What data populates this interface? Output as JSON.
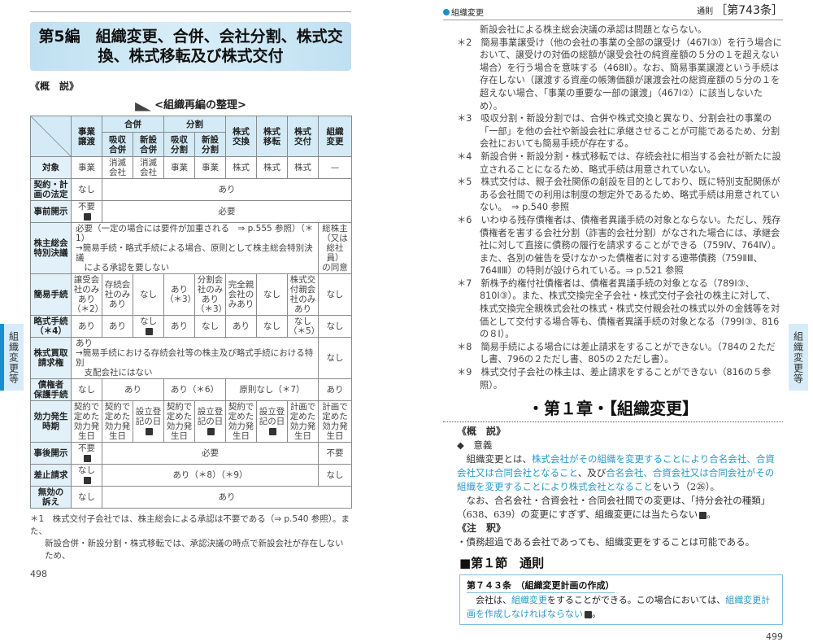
{
  "left_page": {
    "part_title": "第5編　組織変更、合併、会社分割、株式交換、株式移転及び株式交付",
    "overview_heading": "《概　説》",
    "table_title": "<組織再編の整理>",
    "side_tab": "組織変更等",
    "table": {
      "header1": [
        {
          "t": "",
          "rs": 2,
          "diag": true
        },
        {
          "t": "事業\n譲渡",
          "rs": 2
        },
        {
          "t": "合併",
          "cs": 2
        },
        {
          "t": "分割",
          "cs": 2
        },
        {
          "t": "株式\n交換",
          "rs": 2
        },
        {
          "t": "株式\n移転",
          "rs": 2
        },
        {
          "t": "株式\n交付",
          "rs": 2
        },
        {
          "t": "組織\n変更",
          "rs": 2
        }
      ],
      "header2": [
        {
          "t": "吸収\n合併"
        },
        {
          "t": "新設\n合併"
        },
        {
          "t": "吸収\n分割"
        },
        {
          "t": "新設\n分割"
        }
      ],
      "rows": [
        {
          "label": "対象",
          "cells": [
            {
              "t": "事業"
            },
            {
              "t": "消滅\n会社"
            },
            {
              "t": "消滅\n会社"
            },
            {
              "t": "事業"
            },
            {
              "t": "事業"
            },
            {
              "t": "株式"
            },
            {
              "t": "株式"
            },
            {
              "t": "株式"
            },
            {
              "t": "—"
            }
          ]
        },
        {
          "label": "契約・計\n画の法定",
          "cells": [
            {
              "t": "なし"
            },
            {
              "t": "あり",
              "cs": 8
            }
          ]
        },
        {
          "label": "事前開示",
          "cells": [
            {
              "t": "不要\n",
              "b": true
            },
            {
              "t": "必要",
              "cs": 8
            }
          ]
        },
        {
          "label": "株主総会\n特別決議",
          "cells": [
            {
              "t": "必要（一定の場合には要件が加重される　⇒ p.555 参照）（＊1）\n→簡易手続・略式手続による場合、原則として株主総会特別決議\n　による承認を要しない",
              "cs": 8,
              "left": true
            },
            {
              "t": "総株主\n（又は\n総社員）\nの同意"
            }
          ]
        },
        {
          "label": "簡易手続",
          "cells": [
            {
              "t": "譲受会\n社のみ\nあり\n（＊2）"
            },
            {
              "t": "存続会\n社のみ\nあり"
            },
            {
              "t": "なし"
            },
            {
              "t": "あり\n（＊3）"
            },
            {
              "t": "分割会\n社のみ\nあり\n（＊3）"
            },
            {
              "t": "完全親\n会社の\nみあり"
            },
            {
              "t": "なし"
            },
            {
              "t": "株式交\n付親会\n社のみ\nあり"
            },
            {
              "t": "なし"
            }
          ]
        },
        {
          "label": "略式手続\n（＊4）",
          "cells": [
            {
              "t": "あり"
            },
            {
              "t": "あり"
            },
            {
              "t": "なし\n",
              "b": true
            },
            {
              "t": "あり"
            },
            {
              "t": "なし"
            },
            {
              "t": "あり"
            },
            {
              "t": "なし"
            },
            {
              "t": "なし\n（＊5）"
            },
            {
              "t": "なし"
            }
          ]
        },
        {
          "label": "株式買取\n請求権",
          "cells": [
            {
              "t": "あり\n→簡易手続における存続会社等の株主及び略式手続における特別\n　支配会社にはない",
              "cs": 8,
              "left": true
            },
            {
              "t": "なし"
            }
          ]
        },
        {
          "label": "債権者\n保護手続",
          "cells": [
            {
              "t": "なし"
            },
            {
              "t": "あり",
              "cs": 2
            },
            {
              "t": "あり（＊6）",
              "cs": 2
            },
            {
              "t": "原則なし（＊7）",
              "cs": 3
            },
            {
              "t": "あり"
            }
          ]
        },
        {
          "label": "効力発生\n時期",
          "cells": [
            {
              "t": "契約で\n定めた\n効力発\n生日"
            },
            {
              "t": "契約で\n定めた\n効力発\n生日"
            },
            {
              "t": "設立登\n記の日\n",
              "b": true
            },
            {
              "t": "契約で\n定めた\n効力発\n生日"
            },
            {
              "t": "設立登\n記の日\n",
              "b": true
            },
            {
              "t": "契約で\n定めた\n効力発\n生日"
            },
            {
              "t": "設立登\n記の日\n",
              "b": true
            },
            {
              "t": "計画で\n定めた\n効力発\n生日"
            },
            {
              "t": "計画で\n定めた\n効力発\n生日"
            }
          ]
        },
        {
          "label": "事後開示",
          "cells": [
            {
              "t": "不要\n",
              "b": true
            },
            {
              "t": "必要",
              "cs": 7
            },
            {
              "t": "不要"
            }
          ]
        },
        {
          "label": "差止請求",
          "cells": [
            {
              "t": "なし\n",
              "b": true
            },
            {
              "t": "あり（＊8）（＊9）",
              "cs": 7
            },
            {
              "t": "なし"
            }
          ]
        },
        {
          "label": "無効の\n訴え",
          "cells": [
            {
              "t": "なし"
            },
            {
              "t": "あり",
              "cs": 8
            }
          ]
        }
      ]
    },
    "footnote_1": "＊1　株式交付子会社では、株主総会による承認は不要である（⇒ p.540 参照）。また、",
    "footnote_1_cont": "新設合併・新設分割・株式移転では、承認決議の時点で新設会社が存在しないため、",
    "page_number": "498"
  },
  "right_page": {
    "running_head_left": "組織変更",
    "running_head_small": "通則",
    "running_head_article": "［第743条］",
    "side_tab": "組織変更等",
    "notes": [
      {
        "t": "新設会社による株主総会決議の承認は問題とならない。",
        "cont": true
      },
      {
        "t": "＊2　簡易事業譲受け（他の会社の事業の全部の譲受け（467Ⅰ③）を行う場合において、譲受けの対価の総額が譲受会社の純資産額の５分の１を超えない場合）を行う場合を意味する（468Ⅱ）。なお、簡易事業譲渡という手続は存在しない（譲渡する資産の帳簿価額が譲渡会社の総資産額の５分の１を超えない場合、「事業の重要な一部の譲渡」（467Ⅰ②）に該当しないため）。"
      },
      {
        "t": "＊3　吸収分割・新設分割では、合併や株式交換と異なり、分割会社の事業の「一部」を他の会社や新設会社に承継させることが可能であるため、分割会社においても簡易手続が存在する。"
      },
      {
        "t": "＊4　新設合併・新設分割・株式移転では、存続会社に相当する会社が新たに設立されることになるため、略式手続は用意されていない。"
      },
      {
        "t": "＊5　株式交付は、親子会社関係の創設を目的としており、既に特別支配関係がある会社間での利用は制度の想定外であるため、略式手続は用意されていない。　⇒ p.540 参照"
      },
      {
        "t": "＊6　いわゆる残存債権者は、債権者異議手続の対象とならない。ただし、残存債権者を害する会社分割（詐害的会社分割）がなされた場合には、承継会社に対して直接に債務の履行を請求することができる（759Ⅳ、764Ⅳ）。また、各別の催告を受けなかった債権者に対する連帯債務（759ⅡⅢ、764ⅡⅢ）の特則が設けられている。⇒ p.521 参照"
      },
      {
        "t": "＊7　新株予約権付社債権者は、債権者異議手続の対象となる（789Ⅰ③、810Ⅰ③）。また、株式交換完全子会社・株式交付子会社の株主に対して、株式交換完全親株式会社の株式・株式交付親会社の株式以外の金銭等を対価として交付する場合等も、債権者異議手続の対象となる（799Ⅰ③、816の８Ⅰ）。"
      },
      {
        "t": "＊8　簡易手続による場合には差止請求をすることができない。（784の２ただし書、796の２ただし書、805の２ただし書）。"
      },
      {
        "t": "＊9　株式交付子会社の株主は、差止請求をすることができない（816の５参照）。"
      }
    ],
    "chapter_title": "・第１章・【組織変更】",
    "overview_heading": "《概　説》",
    "meaning_heading": "◆　意義",
    "meaning_para": [
      {
        "t": "　組織変更とは、"
      },
      {
        "t": "株式会社がその組織を変更することにより合名会社、合資会社又は合同会社となること",
        "hl": true
      },
      {
        "t": "、及び"
      },
      {
        "t": "合名会社、合資会社又は合同会社がその組織を変更することにより株式会社となること",
        "hl": true
      },
      {
        "t": "をいう（2㉖）。"
      }
    ],
    "note_para": "　なお、合名会社・合資会社・合同会社間での変更は、「持分会社の種類」（638、639）の変更にすぎず、組織変更には当たらない",
    "commentary_heading": "《注　釈》",
    "commentary_text": "・債務超過である会社であっても、組織変更をすることは可能である。",
    "section_title": "■第１節　通則",
    "article": {
      "title": "第７４３条　（組織変更計画の作成）",
      "text": [
        {
          "t": "　会社は、"
        },
        {
          "t": "組織変更",
          "hl": true
        },
        {
          "t": "をすることができる。この場合においては、"
        },
        {
          "t": "組織変更計画を作成しなければならない",
          "hl": true
        }
      ]
    },
    "page_number": "499"
  },
  "colors": {
    "accent": "#1a8fd0",
    "highlight_text": "#2a9ac9",
    "table_header": "#d4ebf7"
  }
}
